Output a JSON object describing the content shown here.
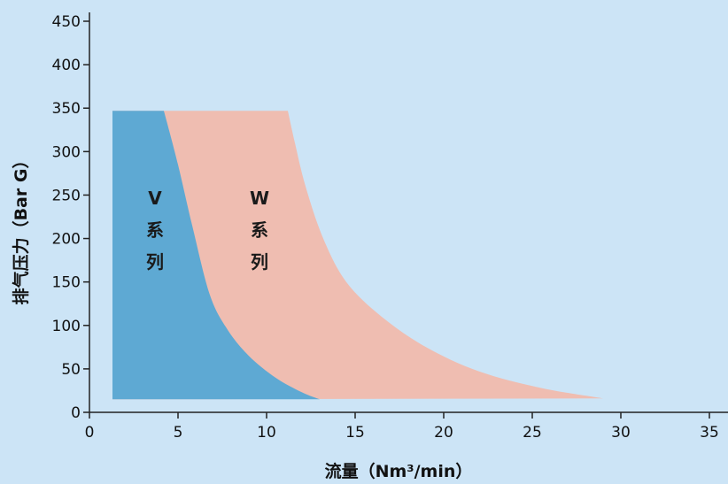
{
  "chart_data": {
    "type": "area",
    "title": "",
    "xlabel": "流量（Nm³/min）",
    "ylabel": "排气压力（Bar G）",
    "xlim": [
      0,
      35
    ],
    "ylim": [
      0,
      450
    ],
    "xticks": [
      "0",
      "5",
      "10",
      "15",
      "20",
      "25",
      "30",
      "35"
    ],
    "yticks": [
      "0",
      "50",
      "100",
      "150",
      "200",
      "250",
      "300",
      "350",
      "400",
      "450"
    ],
    "grid": false,
    "legend": "none",
    "colors": {
      "background": "#cce4f6",
      "W": "#efbdb1",
      "V": "#5ea9d3",
      "axis": "#222222"
    },
    "series": [
      {
        "name": "W系列",
        "label_lines": [
          "W",
          "系",
          "列"
        ],
        "label_at": [
          9.6,
          180
        ],
        "color": "#efbdb1",
        "boundary": [
          [
            1.3,
            15
          ],
          [
            1.3,
            347
          ],
          [
            11.2,
            347
          ],
          [
            11.6,
            310
          ],
          [
            12.2,
            260
          ],
          [
            13.2,
            200
          ],
          [
            14.5,
            150
          ],
          [
            16.5,
            110
          ],
          [
            19.0,
            75
          ],
          [
            22.0,
            47
          ],
          [
            25.5,
            28
          ],
          [
            29.0,
            16
          ],
          [
            1.3,
            15
          ]
        ]
      },
      {
        "name": "V系列",
        "label_lines": [
          "V",
          "系",
          "列"
        ],
        "label_at": [
          3.7,
          180
        ],
        "color": "#5ea9d3",
        "boundary": [
          [
            1.3,
            15
          ],
          [
            1.3,
            347
          ],
          [
            4.2,
            347
          ],
          [
            5.0,
            285
          ],
          [
            5.8,
            215
          ],
          [
            6.8,
            135
          ],
          [
            7.8,
            95
          ],
          [
            9.0,
            65
          ],
          [
            10.5,
            40
          ],
          [
            12.0,
            23
          ],
          [
            13.0,
            15
          ],
          [
            1.3,
            15
          ]
        ]
      }
    ]
  }
}
